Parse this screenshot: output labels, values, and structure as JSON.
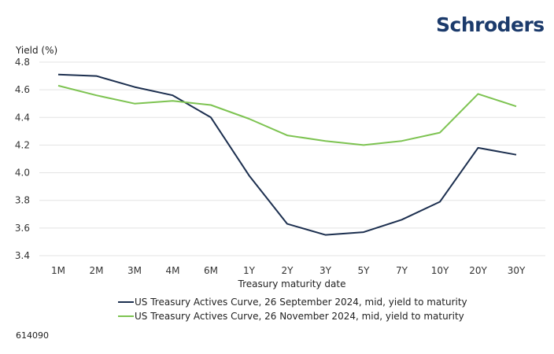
{
  "brand": {
    "logo_text": "Schroders",
    "color": "#1b3a6b"
  },
  "footnote": "614090",
  "chart_data": {
    "type": "line",
    "title": "",
    "xlabel": "Treasury maturity date",
    "ylabel": "Yield (%)",
    "ylim": [
      3.4,
      4.8
    ],
    "yticks": [
      3.4,
      3.6,
      3.8,
      4.0,
      4.2,
      4.4,
      4.6,
      4.8
    ],
    "ytick_labels": [
      "3.4",
      "3.6",
      "3.8",
      "4.0",
      "4.2",
      "4.4",
      "4.6",
      "4.8"
    ],
    "grid": true,
    "legend_position": "bottom",
    "categories": [
      "1M",
      "2M",
      "3M",
      "4M",
      "6M",
      "1Y",
      "2Y",
      "3Y",
      "5Y",
      "7Y",
      "10Y",
      "20Y",
      "30Y"
    ],
    "series": [
      {
        "name": "US Treasury Actives Curve, 26 September 2024, mid, yield to maturity",
        "color": "#1c2f4f",
        "values": [
          4.71,
          4.7,
          4.62,
          4.56,
          4.4,
          3.98,
          3.63,
          3.55,
          3.57,
          3.66,
          3.79,
          4.18,
          4.13
        ]
      },
      {
        "name": "US Treasury Actives Curve, 26 November 2024, mid, yield to maturity",
        "color": "#7dc351",
        "values": [
          4.63,
          4.56,
          4.5,
          4.52,
          4.49,
          4.39,
          4.27,
          4.23,
          4.2,
          4.23,
          4.29,
          4.57,
          4.48
        ]
      }
    ]
  }
}
